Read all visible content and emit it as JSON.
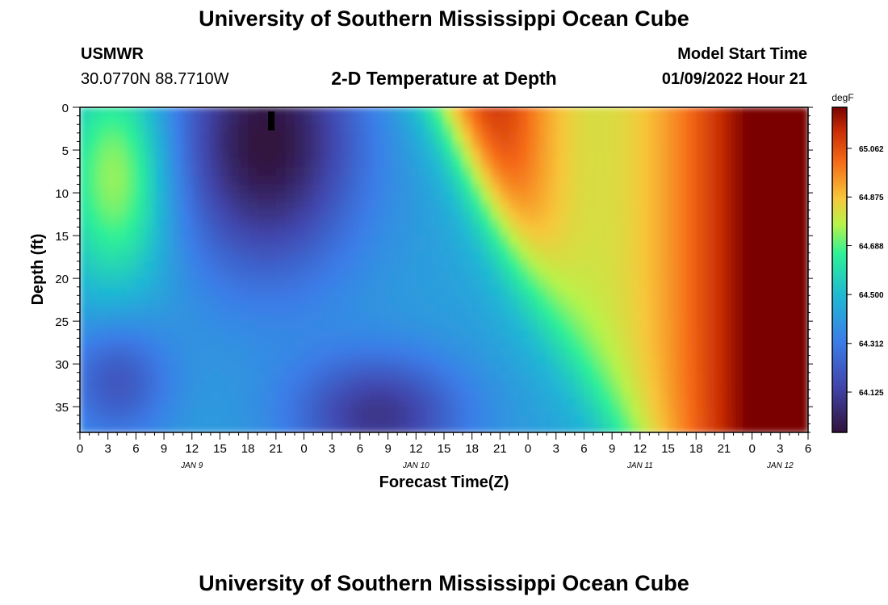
{
  "header": {
    "title": "University of Southern Mississippi Ocean Cube",
    "station": "USMWR",
    "coords": "30.0770N  88.7710W",
    "subtitle": "2-D Temperature at Depth",
    "model_label": "Model Start Time",
    "model_time": "01/09/2022 Hour 21"
  },
  "footer": {
    "title": "University of Southern Mississippi Ocean Cube"
  },
  "chart_data": {
    "type": "heatmap",
    "title": "2-D Temperature at Depth",
    "xlabel": "Forecast Time(Z)",
    "ylabel": "Depth (ft)",
    "x_hours_range": [
      0,
      78
    ],
    "ylim": [
      0,
      38
    ],
    "y_inverted": true,
    "x_tick_labels": [
      "0",
      "3",
      "6",
      "9",
      "12",
      "15",
      "18",
      "21",
      "0",
      "3",
      "6",
      "9",
      "12",
      "15",
      "18",
      "21",
      "0",
      "3",
      "6",
      "9",
      "12",
      "15",
      "18",
      "21",
      "0",
      "3",
      "6"
    ],
    "y_ticks": [
      0,
      5,
      10,
      15,
      20,
      25,
      30,
      35
    ],
    "day_labels": [
      {
        "label": "JAN 9",
        "hour": 12
      },
      {
        "label": "JAN 10",
        "hour": 36
      },
      {
        "label": "JAN 11",
        "hour": 60
      },
      {
        "label": "JAN 12",
        "hour": 75
      }
    ],
    "colorbar": {
      "unit": "degF",
      "min": 63.97,
      "max": 65.22,
      "ticks": [
        "64.125",
        "64.312",
        "64.500",
        "64.688",
        "64.875",
        "65.062"
      ]
    },
    "current_time_marker": {
      "hour": 20.5,
      "depth_range": [
        0.5,
        2.5
      ]
    }
  }
}
